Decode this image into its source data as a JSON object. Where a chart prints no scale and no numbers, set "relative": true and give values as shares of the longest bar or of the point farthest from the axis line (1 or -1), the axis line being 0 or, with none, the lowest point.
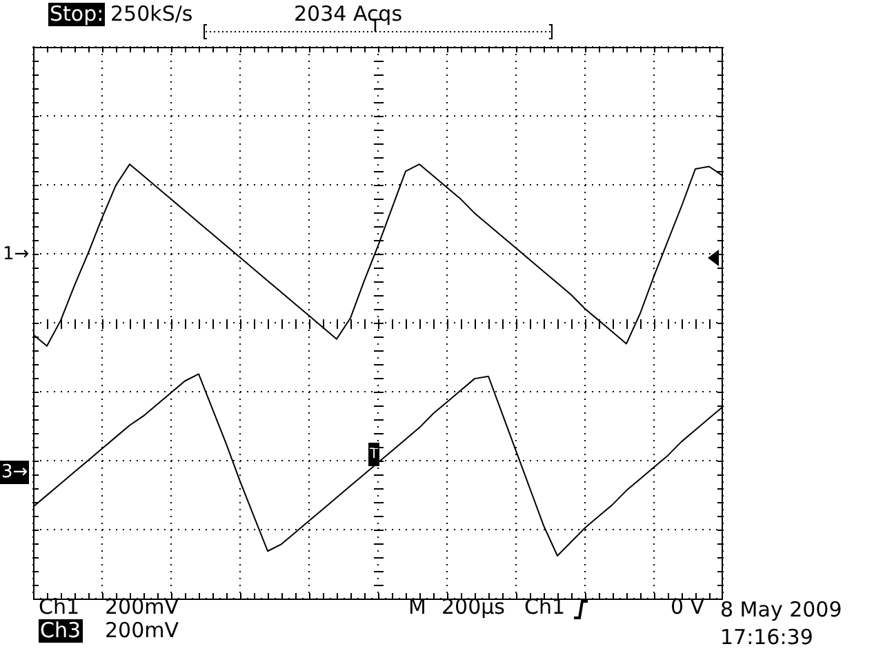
{
  "chart_data": {
    "type": "line",
    "relative": true,
    "grid": true,
    "categories": [
      null,
      null,
      null,
      null,
      null,
      null,
      null,
      null,
      null,
      null,
      null,
      null,
      null,
      null,
      null,
      null,
      null,
      null,
      null,
      null,
      null,
      null,
      null,
      null,
      null,
      null,
      null,
      null,
      null,
      null,
      null,
      null,
      null,
      null,
      null,
      null,
      null,
      null,
      null,
      null,
      null,
      null,
      null,
      null,
      null,
      null,
      null,
      null,
      null,
      null,
      null
    ],
    "series": [
      {
        "color": "#000000",
        "values": [
          -0.05,
          -0.1,
          0.01,
          0.16,
          0.3,
          0.45,
          0.59,
          0.68,
          0.63,
          0.58,
          0.53,
          0.48,
          0.43,
          0.38,
          0.33,
          0.28,
          0.23,
          0.18,
          0.13,
          0.08,
          0.03,
          -0.02,
          -0.07,
          0.02,
          0.18,
          0.33,
          0.49,
          0.65,
          0.68,
          0.63,
          0.58,
          0.53,
          0.47,
          0.42,
          0.37,
          0.32,
          0.27,
          0.22,
          0.17,
          0.12,
          0.06,
          0.01,
          -0.04,
          -0.09,
          0.04,
          0.2,
          0.35,
          0.5,
          0.66,
          0.67,
          0.63
        ]
      },
      {
        "color": "#000000",
        "values": [
          -0.79,
          -0.74,
          -0.69,
          -0.64,
          -0.59,
          -0.54,
          -0.49,
          -0.44,
          -0.4,
          -0.35,
          -0.3,
          -0.25,
          -0.22,
          -0.37,
          -0.52,
          -0.68,
          -0.83,
          -0.98,
          -0.95,
          -0.9,
          -0.85,
          -0.8,
          -0.75,
          -0.7,
          -0.65,
          -0.6,
          -0.55,
          -0.5,
          -0.45,
          -0.39,
          -0.34,
          -0.29,
          -0.24,
          -0.23,
          -0.39,
          -0.55,
          -0.71,
          -0.87,
          -1,
          -0.94,
          -0.88,
          -0.83,
          -0.78,
          -0.72,
          -0.67,
          -0.62,
          -0.57,
          -0.51,
          -0.46,
          -0.41,
          -0.36
        ]
      }
    ],
    "annotations": [
      "Stop:",
      "250kS/s",
      "2034 Acqs",
      "T",
      "1→",
      "3→",
      "T",
      "Ch1",
      "200mV",
      "Ch3",
      "200mV",
      "M",
      "200µs",
      "Ch1",
      "0 V",
      "8 May 2009",
      "17:16:39"
    ]
  }
}
